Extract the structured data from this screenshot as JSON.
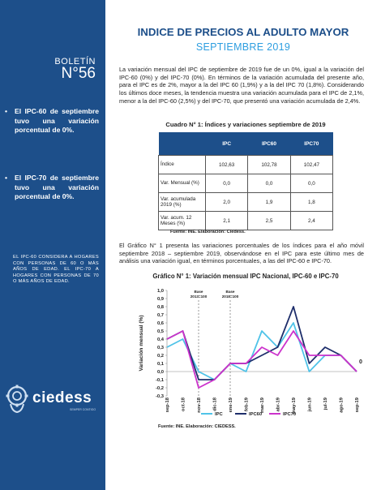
{
  "sidebar": {
    "boletin_label": "BOLETÍN",
    "boletin_number": "N°56",
    "bullets": [
      "El IPC-60 de septiembre tuvo una variación porcentual de 0%.",
      "El IPC-70 de septiembre tuvo una variación porcentual de 0%."
    ],
    "note": "EL IPC-60 CONSIDERA A HOGARES CON PERSONAS DE 60 O MÁS AÑOS DE EDAD. EL IPC-70 A HOGARES CON PERSONAS DE 70 O MÁS AÑOS DE EDAD.",
    "logo_text": "ciedess",
    "logo_sub": "SEMPER CONTIGO"
  },
  "header": {
    "title": "INDICE DE PRECIOS AL ADULTO MAYOR",
    "subtitle": "SEPTIEMBRE 2019"
  },
  "paragraphs": {
    "intro": "La variación mensual del IPC de septiembre de 2019 fue de un 0%, igual a la variación del IPC-60 (0%) y del IPC-70 (0%). En términos de la variación acumulada del presente año, para el IPC es de 2%, mayor a la del IPC 60 (1,9%) y a la del IPC 70 (1,8%). Considerando los últimos doce meses, la tendencia muestra una variación acumulada para el IPC de 2,1%, menor a la del IPC-60 (2,5%) y del IPC-70, que presentó una variación acumulada de 2,4%.",
    "chart_intro": "El Gráfico N° 1 presenta las variaciones porcentuales de los índices para el año móvil septiembre 2018 – septiembre 2019, observándose en el IPC para este último mes de análisis una variación igual, en términos porcentuales, a las del IPC-60 e IPC-70."
  },
  "table": {
    "title": "Cuadro N° 1: Índices y variaciones septiembre de 2019",
    "headers": [
      "",
      "IPC",
      "IPC60",
      "IPC70"
    ],
    "rows": [
      [
        "Índice",
        "102,63",
        "102,78",
        "102,47"
      ],
      [
        "Var. Mensual (%)",
        "0,0",
        "0,0",
        "0,0"
      ],
      [
        "Var. acumulada 2019 (%)",
        "2,0",
        "1,9",
        "1,8"
      ],
      [
        "Var. acum. 12 Meses (%)",
        "2,1",
        "2,5",
        "2,4"
      ]
    ],
    "source": "Fuente: INE. Elaboración: Ciedess."
  },
  "chart": {
    "title": "Gráfico N° 1: Variación mensual IPC Nacional, IPC-60 e IPC-70",
    "source": "Fuente: INE. Elaboración: CIEDESS."
  },
  "chart_data": {
    "type": "line",
    "x": [
      "sep-18",
      "oct-18",
      "nov-18",
      "dic-18",
      "ene-19",
      "feb-19",
      "mar-19",
      "abr-19",
      "may-19",
      "jun-19",
      "jul-19",
      "ago-19",
      "sep-19"
    ],
    "series": [
      {
        "name": "IPC",
        "color": "#4fc3e8",
        "values": [
          0.3,
          0.4,
          0.0,
          -0.1,
          0.1,
          0.0,
          0.5,
          0.3,
          0.6,
          0.0,
          0.2,
          0.2,
          0.0
        ]
      },
      {
        "name": "IPC60",
        "color": "#1e2e6b",
        "values": [
          0.4,
          0.5,
          -0.1,
          -0.1,
          0.1,
          0.1,
          0.2,
          0.3,
          0.8,
          0.1,
          0.3,
          0.2,
          0.0
        ]
      },
      {
        "name": "IPC70",
        "color": "#cc33cc",
        "values": [
          0.4,
          0.5,
          -0.2,
          -0.1,
          0.1,
          0.1,
          0.3,
          0.2,
          0.5,
          0.2,
          0.2,
          0.2,
          0.0
        ]
      }
    ],
    "ylabel": "Variación mensual (%)",
    "ylim": [
      -0.3,
      1.0
    ],
    "yticks": [
      "-0,3",
      "-0,2",
      "-0,1",
      "0,0",
      "0,1",
      "0,2",
      "0,3",
      "0,4",
      "0,5",
      "0,6",
      "0,7",
      "0,8",
      "0,9",
      "1,0"
    ],
    "annotations": [
      {
        "text": "Base 2013=100",
        "x": "nov-18"
      },
      {
        "text": "Base 2018=100",
        "x": "ene-19"
      }
    ],
    "end_label": "0",
    "legend": "bottom",
    "grid": false
  }
}
